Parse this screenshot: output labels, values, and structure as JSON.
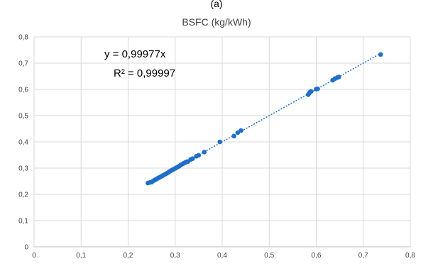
{
  "panel_label": "(a)",
  "chart_data": {
    "type": "scatter",
    "title": "BSFC (kg/kWh)",
    "xlabel": "",
    "ylabel": "",
    "xlim": [
      0,
      0.8
    ],
    "ylim": [
      0,
      0.8
    ],
    "x_ticks": [
      "0",
      "0,1",
      "0,2",
      "0,3",
      "0,4",
      "0,5",
      "0,6",
      "0,7",
      "0,8"
    ],
    "y_ticks": [
      "0",
      "0,1",
      "0,2",
      "0,3",
      "0,4",
      "0,5",
      "0,6",
      "0,7",
      "0,8"
    ],
    "grid": true,
    "legend": "none",
    "series": [
      {
        "color": "#1f6fc9",
        "points": [
          [
            0.242,
            0.243
          ],
          [
            0.246,
            0.245
          ],
          [
            0.25,
            0.247
          ],
          [
            0.253,
            0.251
          ],
          [
            0.256,
            0.254
          ],
          [
            0.259,
            0.257
          ],
          [
            0.262,
            0.26
          ],
          [
            0.264,
            0.262
          ],
          [
            0.267,
            0.265
          ],
          [
            0.27,
            0.268
          ],
          [
            0.273,
            0.271
          ],
          [
            0.276,
            0.274
          ],
          [
            0.279,
            0.277
          ],
          [
            0.282,
            0.28
          ],
          [
            0.285,
            0.283
          ],
          [
            0.288,
            0.287
          ],
          [
            0.291,
            0.29
          ],
          [
            0.294,
            0.293
          ],
          [
            0.297,
            0.296
          ],
          [
            0.3,
            0.299
          ],
          [
            0.303,
            0.302
          ],
          [
            0.306,
            0.305
          ],
          [
            0.309,
            0.308
          ],
          [
            0.312,
            0.312
          ],
          [
            0.315,
            0.315
          ],
          [
            0.318,
            0.318
          ],
          [
            0.321,
            0.321
          ],
          [
            0.324,
            0.324
          ],
          [
            0.327,
            0.325
          ],
          [
            0.333,
            0.333
          ],
          [
            0.337,
            0.336
          ],
          [
            0.345,
            0.345
          ],
          [
            0.35,
            0.349
          ],
          [
            0.362,
            0.361
          ],
          [
            0.395,
            0.4
          ],
          [
            0.425,
            0.422
          ],
          [
            0.433,
            0.435
          ],
          [
            0.44,
            0.443
          ],
          [
            0.583,
            0.58
          ],
          [
            0.585,
            0.585
          ],
          [
            0.587,
            0.59
          ],
          [
            0.589,
            0.592
          ],
          [
            0.6,
            0.601
          ],
          [
            0.603,
            0.602
          ],
          [
            0.635,
            0.635
          ],
          [
            0.64,
            0.641
          ],
          [
            0.645,
            0.645
          ],
          [
            0.648,
            0.647
          ],
          [
            0.737,
            0.733
          ]
        ]
      }
    ],
    "trendline": {
      "slope": 0.99977,
      "x_range": [
        0.24,
        0.737
      ],
      "color": "#1f6fc9",
      "style": "dotted"
    },
    "annotations": [
      "y = 0,99977x",
      "R² = 0,99997"
    ]
  }
}
